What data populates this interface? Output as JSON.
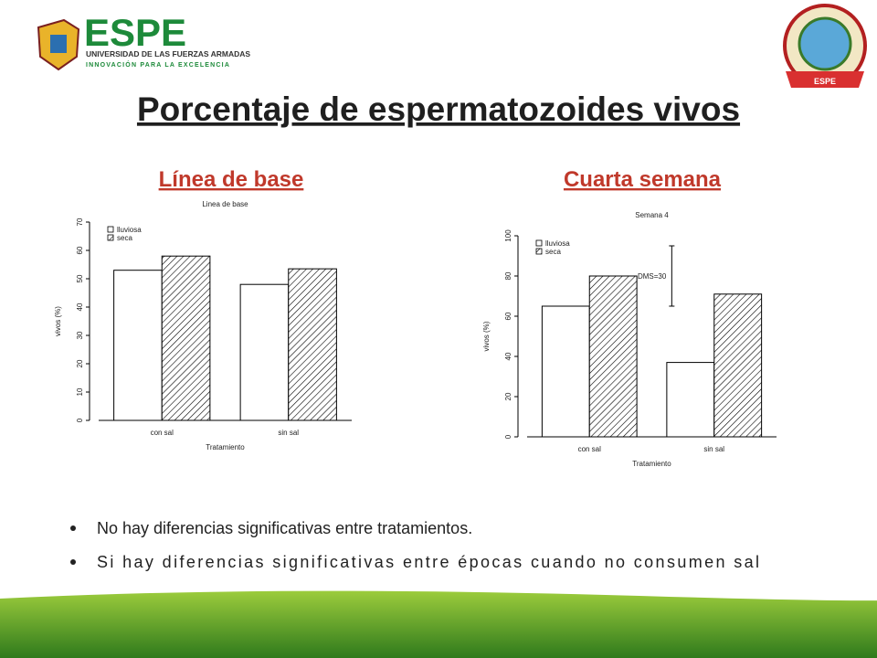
{
  "header": {
    "logo": "ESPE",
    "university": "UNIVERSIDAD DE LAS FUERZAS ARMADAS",
    "motto": "INNOVACIÓN PARA LA EXCELENCIA",
    "badge": "ESPE"
  },
  "title": "Porcentaje de espermatozoides vivos",
  "headings": [
    "Línea de base",
    "Cuarta semana"
  ],
  "bullets": [
    "No hay diferencias significativas entre tratamientos.",
    "Si hay diferencias significativas entre épocas cuando no consumen sal"
  ],
  "chart_data": [
    {
      "type": "bar",
      "title": "Linea de base",
      "x_label": "Tratamiento",
      "y_label": "vivos (%)",
      "categories": [
        "con sal",
        "sin sal"
      ],
      "series": [
        {
          "name": "lluviosa",
          "color": "#ffffff",
          "values": [
            53,
            48
          ]
        },
        {
          "name": "seca",
          "color": "#ffffff",
          "pattern": "hatch",
          "values": [
            58,
            53.5
          ]
        }
      ],
      "ylim": [
        0,
        70
      ],
      "yticks": [
        0,
        10,
        20,
        30,
        40,
        50,
        60,
        70
      ],
      "legend": "top-left"
    },
    {
      "type": "bar",
      "title": "Semana 4",
      "x_label": "Tratamiento",
      "y_label": "vivos (%)",
      "categories": [
        "con sal",
        "sin sal"
      ],
      "series": [
        {
          "name": "lluviosa",
          "color": "#ffffff",
          "values": [
            65,
            37
          ]
        },
        {
          "name": "seca",
          "color": "#ffffff",
          "pattern": "hatch",
          "values": [
            80,
            71
          ]
        }
      ],
      "ylim": [
        0,
        100
      ],
      "yticks": [
        0,
        20,
        40,
        60,
        80,
        100
      ],
      "legend": "top-left",
      "dms": {
        "label": "DMS=30",
        "range": [
          65,
          95
        ]
      }
    }
  ]
}
